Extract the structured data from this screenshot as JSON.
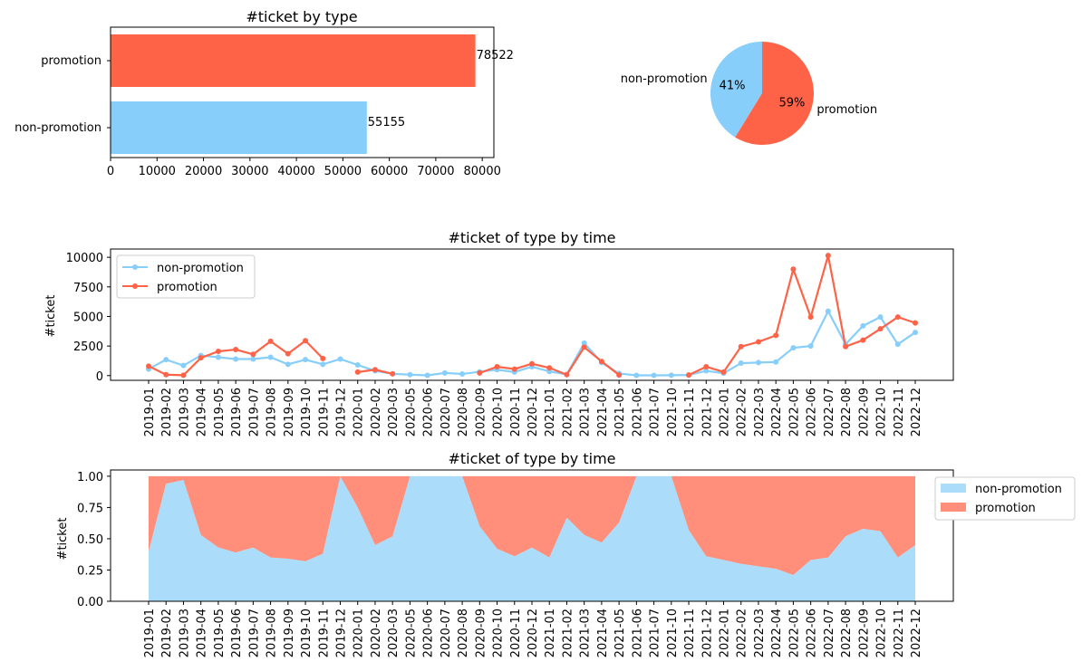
{
  "colors": {
    "non_promotion": "#87CEFA",
    "promotion": "#FF6347",
    "area_non_promotion": "#ABDDFB",
    "area_promotion": "#FF8E7A"
  },
  "chart_data": [
    {
      "type": "bar",
      "orientation": "horizontal",
      "title": "#ticket by type",
      "categories": [
        "non-promotion",
        "promotion"
      ],
      "values": [
        55155,
        78522
      ],
      "data_labels": [
        "55155",
        "78522"
      ],
      "xlim": [
        0,
        82500
      ],
      "xticks": [
        0,
        10000,
        20000,
        30000,
        40000,
        50000,
        60000,
        70000,
        80000
      ],
      "xlabel": "",
      "ylabel": "",
      "grid": false
    },
    {
      "type": "pie",
      "title": "",
      "labels": [
        "non-promotion",
        "promotion"
      ],
      "values": [
        55155,
        78522
      ],
      "pct_labels": [
        "41%",
        "59%"
      ]
    },
    {
      "type": "line",
      "title": "#ticket of type by time",
      "xlabel": "",
      "ylabel": "#ticket",
      "ylim": [
        -400,
        10700
      ],
      "yticks": [
        0,
        2500,
        5000,
        7500,
        10000
      ],
      "legend": "upper-left",
      "grid": false,
      "x": [
        "2019-01",
        "2019-02",
        "2019-03",
        "2019-04",
        "2019-05",
        "2019-06",
        "2019-07",
        "2019-08",
        "2019-09",
        "2019-10",
        "2019-11",
        "2019-12",
        "2020-01",
        "2020-02",
        "2020-03",
        "2020-05",
        "2020-06",
        "2020-07",
        "2020-08",
        "2020-09",
        "2020-10",
        "2020-11",
        "2020-12",
        "2021-01",
        "2021-02",
        "2021-03",
        "2021-04",
        "2021-05",
        "2021-06",
        "2021-07",
        "2021-10",
        "2021-11",
        "2021-12",
        "2022-01",
        "2022-02",
        "2022-03",
        "2022-04",
        "2022-05",
        "2022-06",
        "2022-07",
        "2022-08",
        "2022-09",
        "2022-10",
        "2022-11",
        "2022-12"
      ],
      "series": [
        {
          "name": "non-promotion",
          "values": [
            550,
            1350,
            850,
            1700,
            1550,
            1400,
            1400,
            1550,
            950,
            1350,
            950,
            1400,
            900,
            400,
            150,
            80,
            20,
            220,
            140,
            320,
            500,
            300,
            750,
            350,
            100,
            2750,
            1100,
            180,
            20,
            20,
            30,
            50,
            400,
            200,
            1050,
            1100,
            1150,
            2350,
            2500,
            5450,
            2650,
            4200,
            4950,
            2650,
            3650
          ]
        },
        {
          "name": "promotion",
          "values": [
            800,
            80,
            30,
            1500,
            2050,
            2200,
            1800,
            2900,
            1850,
            2950,
            1450,
            null,
            300,
            500,
            150,
            null,
            null,
            null,
            null,
            220,
            750,
            550,
            1000,
            650,
            80,
            2400,
            1200,
            50,
            null,
            null,
            null,
            50,
            750,
            300,
            2450,
            2850,
            3400,
            9000,
            4950,
            10150,
            2450,
            3000,
            3950,
            4950,
            4450
          ]
        }
      ]
    },
    {
      "type": "area",
      "stacked": true,
      "normalized": true,
      "title": "#ticket of type by time",
      "xlabel": "",
      "ylabel": "#ticket",
      "ylim": [
        0,
        1.05
      ],
      "yticks": [
        0.0,
        0.25,
        0.5,
        0.75,
        1.0
      ],
      "legend": "right-outside",
      "grid": false,
      "x": [
        "2019-01",
        "2019-02",
        "2019-03",
        "2019-04",
        "2019-05",
        "2019-06",
        "2019-07",
        "2019-08",
        "2019-09",
        "2019-10",
        "2019-11",
        "2019-12",
        "2020-01",
        "2020-02",
        "2020-03",
        "2020-05",
        "2020-06",
        "2020-07",
        "2020-08",
        "2020-09",
        "2020-10",
        "2020-11",
        "2020-12",
        "2021-01",
        "2021-02",
        "2021-03",
        "2021-04",
        "2021-05",
        "2021-06",
        "2021-07",
        "2021-10",
        "2021-11",
        "2021-12",
        "2022-01",
        "2022-02",
        "2022-03",
        "2022-04",
        "2022-05",
        "2022-06",
        "2022-07",
        "2022-08",
        "2022-09",
        "2022-10",
        "2022-11",
        "2022-12"
      ],
      "series": [
        {
          "name": "non-promotion",
          "values": [
            0.4,
            0.94,
            0.97,
            0.53,
            0.43,
            0.39,
            0.43,
            0.35,
            0.34,
            0.32,
            0.38,
            1.0,
            0.75,
            0.45,
            0.52,
            1.0,
            1.0,
            1.0,
            1.0,
            0.6,
            0.42,
            0.36,
            0.43,
            0.35,
            0.67,
            0.53,
            0.47,
            0.63,
            1.0,
            1.0,
            1.0,
            0.57,
            0.36,
            0.33,
            0.3,
            0.28,
            0.26,
            0.21,
            0.33,
            0.35,
            0.52,
            0.58,
            0.56,
            0.35,
            0.45
          ]
        },
        {
          "name": "promotion",
          "values": [
            0.6,
            0.06,
            0.03,
            0.47,
            0.57,
            0.61,
            0.57,
            0.65,
            0.66,
            0.68,
            0.62,
            0.0,
            0.25,
            0.55,
            0.48,
            0.0,
            0.0,
            0.0,
            0.0,
            0.4,
            0.58,
            0.64,
            0.57,
            0.65,
            0.33,
            0.47,
            0.53,
            0.37,
            0.0,
            0.0,
            0.0,
            0.43,
            0.64,
            0.67,
            0.7,
            0.72,
            0.74,
            0.79,
            0.67,
            0.65,
            0.48,
            0.42,
            0.44,
            0.65,
            0.55
          ]
        }
      ]
    }
  ]
}
